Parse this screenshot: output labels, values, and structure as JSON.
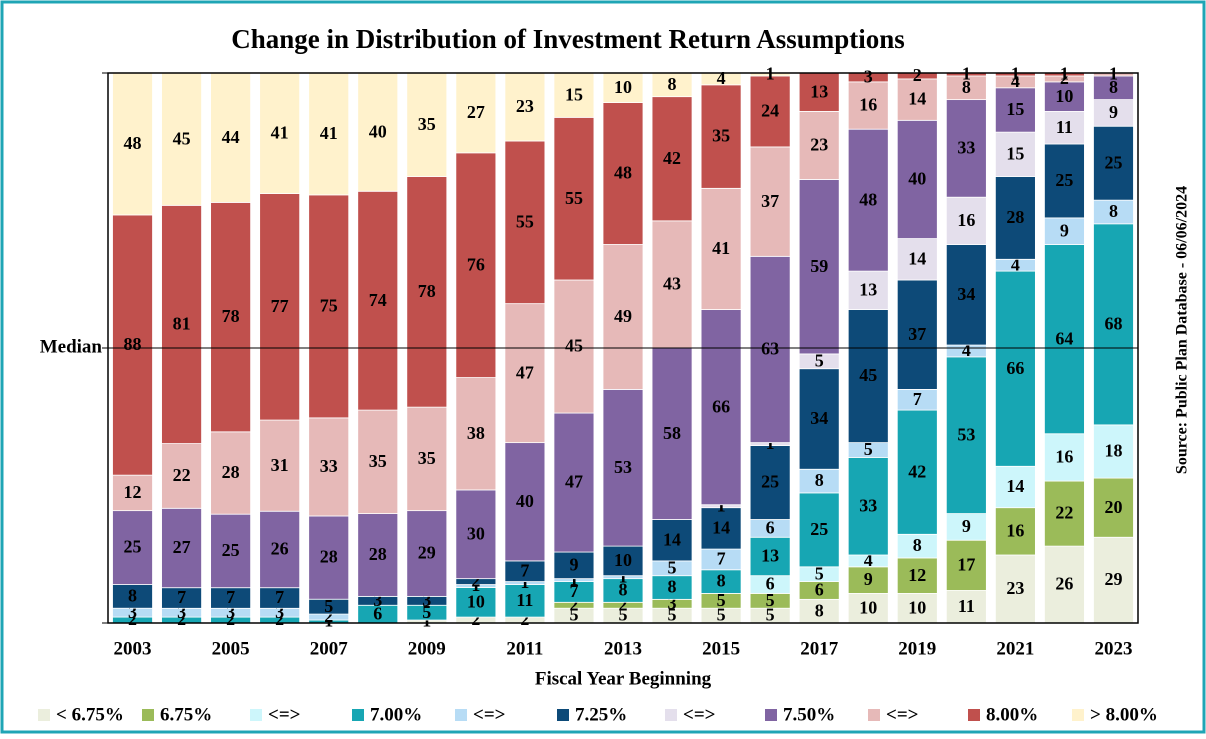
{
  "chart_data": {
    "type": "stacked_bar_percent",
    "title": "Change in Distribution of Investment Return Assumptions",
    "x_label": "Fiscal Year Beginning",
    "median_label": "Median",
    "source": "Source: Public Plan Database - 06/06/2024",
    "categories": [
      "2003",
      null,
      "2005",
      null,
      "2007",
      null,
      "2009",
      null,
      "2011",
      null,
      "2013",
      null,
      "2015",
      null,
      "2017",
      null,
      "2019",
      null,
      "2021",
      null,
      "2023"
    ],
    "series": [
      {
        "name": "< 6.75%",
        "color": "#ebeedd",
        "values": [
          0,
          0,
          0,
          0,
          0,
          0,
          1,
          2,
          2,
          5,
          5,
          5,
          5,
          5,
          8,
          10,
          10,
          11,
          23,
          26,
          29
        ]
      },
      {
        "name": "6.75%",
        "color": "#9bbb59",
        "values": [
          0,
          0,
          0,
          0,
          0,
          0,
          0,
          0,
          0,
          2,
          2,
          3,
          5,
          5,
          6,
          9,
          12,
          17,
          16,
          22,
          20
        ]
      },
      {
        "name": "<=>",
        "color": "#cdf6fb",
        "values": [
          0,
          0,
          0,
          0,
          0,
          0,
          0,
          0,
          0,
          0,
          0,
          0,
          0,
          6,
          5,
          4,
          8,
          9,
          14,
          16,
          18
        ]
      },
      {
        "name": "7.00%",
        "color": "#17a6b3",
        "values": [
          2,
          2,
          2,
          2,
          1,
          6,
          5,
          10,
          11,
          7,
          8,
          8,
          8,
          13,
          25,
          33,
          42,
          53,
          66,
          64,
          68
        ]
      },
      {
        "name": "<=>",
        "color": "#b7dcf5",
        "values": [
          3,
          3,
          3,
          3,
          2,
          0,
          0,
          1,
          1,
          1,
          1,
          5,
          7,
          6,
          8,
          5,
          7,
          4,
          4,
          9,
          8
        ]
      },
      {
        "name": "7.25%",
        "color": "#0d4a78",
        "values": [
          8,
          7,
          7,
          7,
          5,
          3,
          3,
          2,
          7,
          9,
          10,
          14,
          14,
          25,
          34,
          45,
          37,
          34,
          28,
          25,
          25
        ]
      },
      {
        "name": "<=>",
        "color": "#e4dfec",
        "values": [
          0,
          0,
          0,
          0,
          0,
          0,
          0,
          0,
          0,
          0,
          0,
          0,
          1,
          1,
          5,
          13,
          14,
          16,
          15,
          11,
          9
        ]
      },
      {
        "name": "7.50%",
        "color": "#8064a2",
        "values": [
          25,
          27,
          25,
          26,
          28,
          28,
          29,
          30,
          40,
          47,
          53,
          58,
          66,
          63,
          59,
          48,
          40,
          33,
          15,
          10,
          8
        ]
      },
      {
        "name": "<=>",
        "color": "#e6b9b8",
        "values": [
          12,
          22,
          28,
          31,
          33,
          35,
          35,
          38,
          47,
          45,
          49,
          43,
          41,
          37,
          23,
          16,
          14,
          8,
          4,
          2,
          1
        ]
      },
      {
        "name": "8.00%",
        "color": "#c0504d",
        "values": [
          88,
          81,
          78,
          77,
          75,
          74,
          78,
          76,
          55,
          55,
          48,
          42,
          35,
          24,
          13,
          3,
          2,
          1,
          1,
          1,
          0
        ]
      },
      {
        "name": "> 8.00%",
        "color": "#fff2cc",
        "values": [
          48,
          45,
          44,
          41,
          41,
          40,
          35,
          27,
          23,
          15,
          10,
          8,
          4,
          1,
          0,
          0,
          0,
          0,
          0,
          0,
          0
        ]
      }
    ]
  }
}
